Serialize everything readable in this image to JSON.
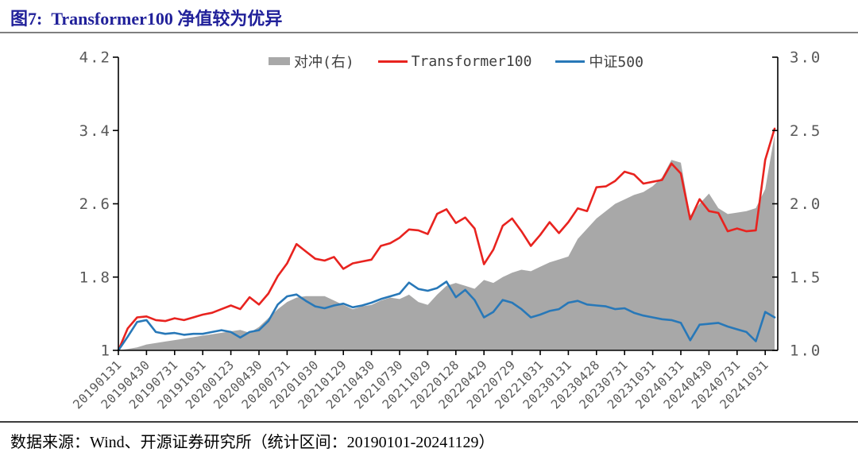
{
  "page": {
    "title": "图7:  Transformer100 净值较为优异",
    "source_note": "数据来源：Wind、开源证券研究所（统计区间：20190101-20241129）"
  },
  "colors": {
    "title_navy": "#21219a",
    "transformer100_red": "#e8231f",
    "csi500_blue": "#2878b8",
    "hedge_gray": "#a8a8a8",
    "axis_line": "#000000",
    "axis_text": "#595959",
    "legend_text": "#3f3f3f"
  },
  "chart_data": {
    "type": "line",
    "note": "monthly net-value points, 2019-01 .. 2024-11; ticks every 3rd point",
    "legend": [
      {
        "label": "对冲(右)",
        "marker": "area",
        "color": "#a8a8a8"
      },
      {
        "label": "Transformer100",
        "marker": "line",
        "color": "#e8231f"
      },
      {
        "label": "中证500",
        "marker": "line",
        "color": "#2878b8"
      }
    ],
    "left_axis": {
      "min": 1,
      "max": 4.2,
      "ticks": [
        "4.2",
        "3.4",
        "2.6",
        "1.8",
        "1"
      ]
    },
    "right_axis": {
      "min": 1,
      "max": 3.0,
      "ticks": [
        "3.0",
        "2.5",
        "2.0",
        "1.5",
        "1.0"
      ]
    },
    "x_ticks": {
      "every_n_points": 3,
      "labels": [
        "20190131",
        "20190430",
        "20190731",
        "20191031",
        "20200123",
        "20200430",
        "20200731",
        "20201030",
        "20210129",
        "20210430",
        "20210730",
        "20211029",
        "20220128",
        "20220429",
        "20220729",
        "20221031",
        "20230131",
        "20230428",
        "20230731",
        "20231031",
        "20240131",
        "20240430",
        "20240731",
        "20241031"
      ]
    },
    "series": [
      {
        "name": "对冲(右)",
        "axis": "right",
        "style": "area",
        "color": "#a8a8a8",
        "values": [
          1.0,
          1.01,
          1.02,
          1.04,
          1.05,
          1.06,
          1.07,
          1.08,
          1.09,
          1.1,
          1.11,
          1.12,
          1.13,
          1.14,
          1.12,
          1.16,
          1.22,
          1.28,
          1.33,
          1.36,
          1.37,
          1.37,
          1.37,
          1.34,
          1.31,
          1.28,
          1.3,
          1.31,
          1.34,
          1.36,
          1.35,
          1.38,
          1.33,
          1.31,
          1.38,
          1.44,
          1.46,
          1.44,
          1.42,
          1.48,
          1.46,
          1.5,
          1.53,
          1.55,
          1.54,
          1.57,
          1.6,
          1.62,
          1.64,
          1.76,
          1.83,
          1.9,
          1.95,
          2.0,
          2.03,
          2.06,
          2.08,
          2.12,
          2.18,
          2.3,
          2.28,
          1.92,
          2.0,
          2.07,
          1.97,
          1.93,
          1.94,
          1.95,
          1.97,
          2.1,
          2.47
        ]
      },
      {
        "name": "Transformer100",
        "axis": "left",
        "style": "line",
        "color": "#e8231f",
        "values": [
          1.0,
          1.24,
          1.36,
          1.37,
          1.33,
          1.32,
          1.35,
          1.33,
          1.36,
          1.39,
          1.41,
          1.45,
          1.49,
          1.45,
          1.58,
          1.5,
          1.62,
          1.81,
          1.95,
          2.16,
          2.08,
          2.0,
          1.98,
          2.02,
          1.89,
          1.95,
          1.97,
          1.99,
          2.14,
          2.17,
          2.23,
          2.32,
          2.31,
          2.27,
          2.49,
          2.54,
          2.39,
          2.45,
          2.33,
          1.94,
          2.1,
          2.36,
          2.44,
          2.3,
          2.14,
          2.26,
          2.4,
          2.28,
          2.4,
          2.55,
          2.52,
          2.78,
          2.79,
          2.85,
          2.95,
          2.92,
          2.82,
          2.84,
          2.86,
          3.04,
          2.93,
          2.43,
          2.65,
          2.52,
          2.5,
          2.3,
          2.33,
          2.3,
          2.31,
          3.08,
          3.42
        ]
      },
      {
        "name": "中证500",
        "axis": "left",
        "style": "line",
        "color": "#2878b8",
        "values": [
          1.0,
          1.15,
          1.31,
          1.33,
          1.2,
          1.18,
          1.19,
          1.17,
          1.18,
          1.18,
          1.2,
          1.22,
          1.2,
          1.14,
          1.2,
          1.22,
          1.32,
          1.5,
          1.59,
          1.61,
          1.54,
          1.48,
          1.46,
          1.49,
          1.51,
          1.47,
          1.49,
          1.52,
          1.56,
          1.59,
          1.62,
          1.74,
          1.67,
          1.65,
          1.68,
          1.75,
          1.58,
          1.66,
          1.55,
          1.36,
          1.42,
          1.55,
          1.52,
          1.45,
          1.36,
          1.39,
          1.43,
          1.45,
          1.52,
          1.54,
          1.5,
          1.49,
          1.48,
          1.45,
          1.46,
          1.41,
          1.38,
          1.36,
          1.34,
          1.33,
          1.3,
          1.11,
          1.28,
          1.29,
          1.3,
          1.26,
          1.23,
          1.2,
          1.1,
          1.42,
          1.36
        ]
      }
    ]
  }
}
